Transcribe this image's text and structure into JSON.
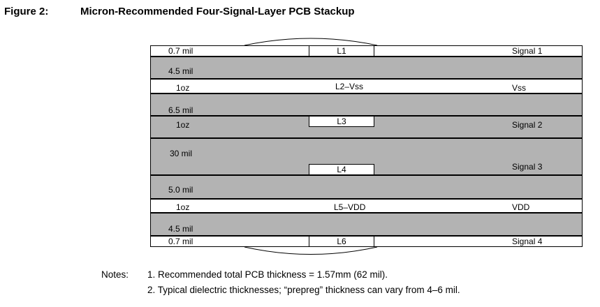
{
  "figure": {
    "label": "Figure 2:",
    "title": "Micron-Recommended Four-Signal-Layer PCB Stackup"
  },
  "layers": [
    {
      "thickness": "0.7 mil",
      "box": "L1",
      "right": "Signal 1"
    },
    {
      "thickness": "4.5 mil"
    },
    {
      "thickness": "1oz",
      "center": "L2–Vss",
      "right": "Vss"
    },
    {
      "thickness": "6.5 mil"
    },
    {
      "thickness": "1oz",
      "box": "L3",
      "right": "Signal 2"
    },
    {
      "thickness": "30 mil",
      "box": "L4",
      "right": "Signal 3"
    },
    {
      "thickness": "5.0 mil"
    },
    {
      "thickness": "1oz",
      "center": "L5–VDD",
      "right": "VDD"
    },
    {
      "thickness": "4.5 mil"
    },
    {
      "thickness": "0.7 mil",
      "box": "L6",
      "right": "Signal 4"
    }
  ],
  "notes": {
    "heading": "Notes:",
    "items": [
      "1.  Recommended total PCB thickness = 1.57mm (62 mil).",
      "2.  Typical dielectric thicknesses; “prepreg” thickness can vary from 4–6 mil."
    ]
  }
}
